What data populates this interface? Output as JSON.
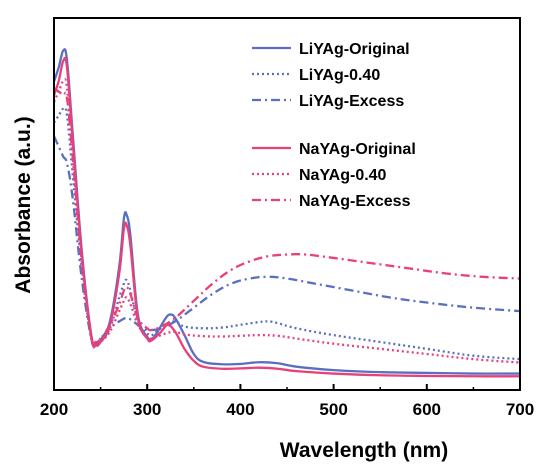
{
  "chart_data": {
    "type": "line",
    "xlabel": "Wavelength (nm)",
    "ylabel": "Absorbance (a.u.)",
    "xlim": [
      200,
      700
    ],
    "ylim": [
      0,
      1
    ],
    "xticks": [
      200,
      300,
      400,
      500,
      600,
      700
    ],
    "y_ticks_labeled": false,
    "legend_position": "top-right",
    "series": [
      {
        "name": "LiYAg-Original",
        "color": "#5a6fc0",
        "dash": "solid",
        "points": [
          [
            200,
            0.9
          ],
          [
            205,
            0.94
          ],
          [
            210,
            0.99
          ],
          [
            214,
            0.96
          ],
          [
            220,
            0.75
          ],
          [
            230,
            0.4
          ],
          [
            240,
            0.16
          ],
          [
            245,
            0.135
          ],
          [
            250,
            0.145
          ],
          [
            260,
            0.2
          ],
          [
            270,
            0.36
          ],
          [
            275,
            0.5
          ],
          [
            278,
            0.51
          ],
          [
            282,
            0.45
          ],
          [
            290,
            0.22
          ],
          [
            300,
            0.155
          ],
          [
            305,
            0.15
          ],
          [
            310,
            0.165
          ],
          [
            320,
            0.21
          ],
          [
            325,
            0.22
          ],
          [
            330,
            0.21
          ],
          [
            340,
            0.16
          ],
          [
            350,
            0.105
          ],
          [
            360,
            0.082
          ],
          [
            380,
            0.075
          ],
          [
            400,
            0.076
          ],
          [
            420,
            0.081
          ],
          [
            440,
            0.078
          ],
          [
            460,
            0.068
          ],
          [
            500,
            0.058
          ],
          [
            550,
            0.052
          ],
          [
            600,
            0.05
          ],
          [
            650,
            0.048
          ],
          [
            700,
            0.048
          ]
        ]
      },
      {
        "name": "LiYAg-0.40",
        "color": "#5a6fc0",
        "dash": "dot",
        "points": [
          [
            200,
            0.78
          ],
          [
            205,
            0.8
          ],
          [
            210,
            0.82
          ],
          [
            214,
            0.8
          ],
          [
            220,
            0.63
          ],
          [
            230,
            0.35
          ],
          [
            240,
            0.15
          ],
          [
            245,
            0.135
          ],
          [
            250,
            0.14
          ],
          [
            260,
            0.18
          ],
          [
            270,
            0.27
          ],
          [
            275,
            0.31
          ],
          [
            278,
            0.32
          ],
          [
            282,
            0.29
          ],
          [
            290,
            0.2
          ],
          [
            300,
            0.165
          ],
          [
            305,
            0.16
          ],
          [
            310,
            0.17
          ],
          [
            320,
            0.19
          ],
          [
            330,
            0.2
          ],
          [
            340,
            0.185
          ],
          [
            360,
            0.18
          ],
          [
            380,
            0.182
          ],
          [
            400,
            0.19
          ],
          [
            420,
            0.198
          ],
          [
            430,
            0.2
          ],
          [
            440,
            0.195
          ],
          [
            460,
            0.18
          ],
          [
            500,
            0.16
          ],
          [
            550,
            0.14
          ],
          [
            600,
            0.12
          ],
          [
            650,
            0.1
          ],
          [
            700,
            0.09
          ]
        ]
      },
      {
        "name": "LiYAg-Excess",
        "color": "#5a6fc0",
        "dash": "dashdot",
        "points": [
          [
            200,
            0.74
          ],
          [
            205,
            0.71
          ],
          [
            210,
            0.68
          ],
          [
            214,
            0.66
          ],
          [
            220,
            0.56
          ],
          [
            230,
            0.32
          ],
          [
            240,
            0.15
          ],
          [
            245,
            0.14
          ],
          [
            250,
            0.15
          ],
          [
            260,
            0.18
          ],
          [
            270,
            0.2
          ],
          [
            278,
            0.21
          ],
          [
            285,
            0.2
          ],
          [
            295,
            0.18
          ],
          [
            305,
            0.175
          ],
          [
            315,
            0.18
          ],
          [
            330,
            0.2
          ],
          [
            350,
            0.24
          ],
          [
            370,
            0.28
          ],
          [
            390,
            0.31
          ],
          [
            410,
            0.325
          ],
          [
            430,
            0.33
          ],
          [
            450,
            0.325
          ],
          [
            480,
            0.31
          ],
          [
            520,
            0.29
          ],
          [
            560,
            0.27
          ],
          [
            600,
            0.255
          ],
          [
            650,
            0.24
          ],
          [
            700,
            0.23
          ]
        ]
      },
      {
        "name": "NaYAg-Original",
        "color": "#e8407a",
        "dash": "solid",
        "points": [
          [
            200,
            0.86
          ],
          [
            205,
            0.9
          ],
          [
            210,
            0.96
          ],
          [
            214,
            0.94
          ],
          [
            220,
            0.73
          ],
          [
            230,
            0.39
          ],
          [
            240,
            0.155
          ],
          [
            245,
            0.13
          ],
          [
            250,
            0.14
          ],
          [
            260,
            0.19
          ],
          [
            270,
            0.34
          ],
          [
            275,
            0.47
          ],
          [
            278,
            0.48
          ],
          [
            282,
            0.42
          ],
          [
            290,
            0.21
          ],
          [
            300,
            0.15
          ],
          [
            305,
            0.145
          ],
          [
            315,
            0.17
          ],
          [
            322,
            0.19
          ],
          [
            330,
            0.17
          ],
          [
            340,
            0.12
          ],
          [
            350,
            0.085
          ],
          [
            360,
            0.068
          ],
          [
            380,
            0.062
          ],
          [
            400,
            0.063
          ],
          [
            420,
            0.065
          ],
          [
            440,
            0.062
          ],
          [
            460,
            0.055
          ],
          [
            500,
            0.048
          ],
          [
            550,
            0.043
          ],
          [
            600,
            0.041
          ],
          [
            650,
            0.04
          ],
          [
            700,
            0.04
          ]
        ]
      },
      {
        "name": "NaYAg-0.40",
        "color": "#e8407a",
        "dash": "dot",
        "points": [
          [
            200,
            0.84
          ],
          [
            205,
            0.87
          ],
          [
            210,
            0.9
          ],
          [
            214,
            0.88
          ],
          [
            220,
            0.68
          ],
          [
            230,
            0.37
          ],
          [
            240,
            0.15
          ],
          [
            245,
            0.13
          ],
          [
            250,
            0.14
          ],
          [
            260,
            0.17
          ],
          [
            270,
            0.23
          ],
          [
            275,
            0.26
          ],
          [
            278,
            0.27
          ],
          [
            282,
            0.25
          ],
          [
            290,
            0.19
          ],
          [
            300,
            0.155
          ],
          [
            305,
            0.15
          ],
          [
            310,
            0.155
          ],
          [
            320,
            0.165
          ],
          [
            330,
            0.17
          ],
          [
            340,
            0.162
          ],
          [
            360,
            0.157
          ],
          [
            380,
            0.156
          ],
          [
            400,
            0.158
          ],
          [
            420,
            0.16
          ],
          [
            440,
            0.158
          ],
          [
            460,
            0.15
          ],
          [
            500,
            0.135
          ],
          [
            550,
            0.12
          ],
          [
            600,
            0.105
          ],
          [
            650,
            0.09
          ],
          [
            700,
            0.08
          ]
        ]
      },
      {
        "name": "NaYAg-Excess",
        "color": "#e8407a",
        "dash": "dashdot",
        "points": [
          [
            200,
            0.88
          ],
          [
            205,
            0.87
          ],
          [
            210,
            0.86
          ],
          [
            214,
            0.85
          ],
          [
            220,
            0.68
          ],
          [
            230,
            0.37
          ],
          [
            240,
            0.16
          ],
          [
            245,
            0.14
          ],
          [
            250,
            0.15
          ],
          [
            260,
            0.19
          ],
          [
            270,
            0.25
          ],
          [
            275,
            0.29
          ],
          [
            278,
            0.3
          ],
          [
            282,
            0.28
          ],
          [
            290,
            0.21
          ],
          [
            300,
            0.18
          ],
          [
            305,
            0.175
          ],
          [
            315,
            0.185
          ],
          [
            330,
            0.21
          ],
          [
            350,
            0.26
          ],
          [
            370,
            0.31
          ],
          [
            390,
            0.35
          ],
          [
            410,
            0.375
          ],
          [
            430,
            0.39
          ],
          [
            450,
            0.395
          ],
          [
            470,
            0.395
          ],
          [
            500,
            0.385
          ],
          [
            540,
            0.37
          ],
          [
            580,
            0.355
          ],
          [
            620,
            0.34
          ],
          [
            660,
            0.33
          ],
          [
            700,
            0.325
          ]
        ]
      }
    ]
  }
}
